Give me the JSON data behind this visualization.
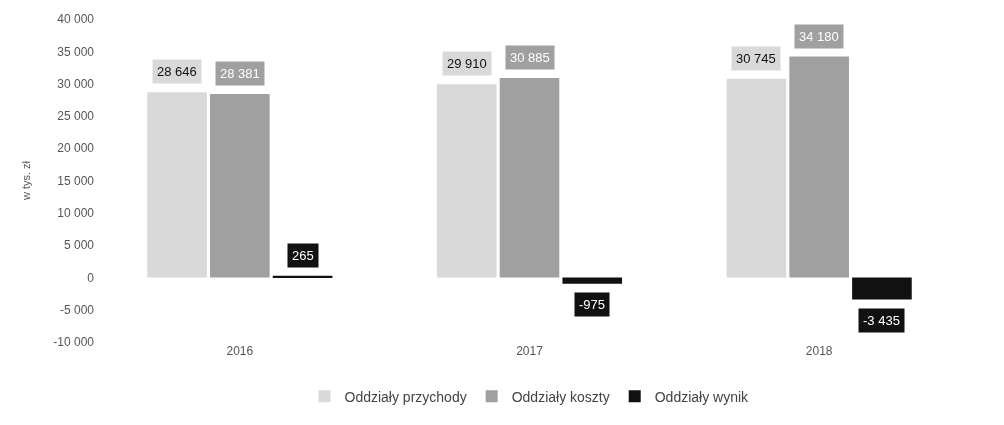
{
  "chart_data": {
    "type": "bar",
    "ylabel": "w tys. zł",
    "categories": [
      "2016",
      "2017",
      "2018"
    ],
    "series": [
      {
        "name": "Oddziały przychody",
        "color": "#d9d9d9",
        "values": [
          28646,
          29910,
          30745
        ],
        "value_labels": [
          "28 646",
          "29 910",
          "30 745"
        ]
      },
      {
        "name": "Oddziały koszty",
        "color": "#a0a0a0",
        "values": [
          28381,
          30885,
          34180
        ],
        "value_labels": [
          "28 381",
          "30 885",
          "34 180"
        ]
      },
      {
        "name": "Oddziały wynik",
        "color": "#111111",
        "values": [
          265,
          -975,
          -3435
        ],
        "value_labels": [
          "265",
          "-975",
          "-3 435"
        ]
      }
    ],
    "ylim": [
      -10000,
      40000
    ],
    "yticks": [
      {
        "value": -10000,
        "label": "-10 000"
      },
      {
        "value": -5000,
        "label": "-5 000"
      },
      0,
      {
        "value": 5000,
        "label": "5 000"
      },
      {
        "value": 10000,
        "label": "10 000"
      },
      {
        "value": 15000,
        "label": "15 000"
      },
      {
        "value": 20000,
        "label": "20 000"
      },
      {
        "value": 25000,
        "label": "25 000"
      },
      {
        "value": 30000,
        "label": "30 000"
      },
      {
        "value": 35000,
        "label": "35 000"
      },
      {
        "value": 40000,
        "label": "40 000"
      }
    ],
    "grid": false,
    "legend": "bottom"
  }
}
